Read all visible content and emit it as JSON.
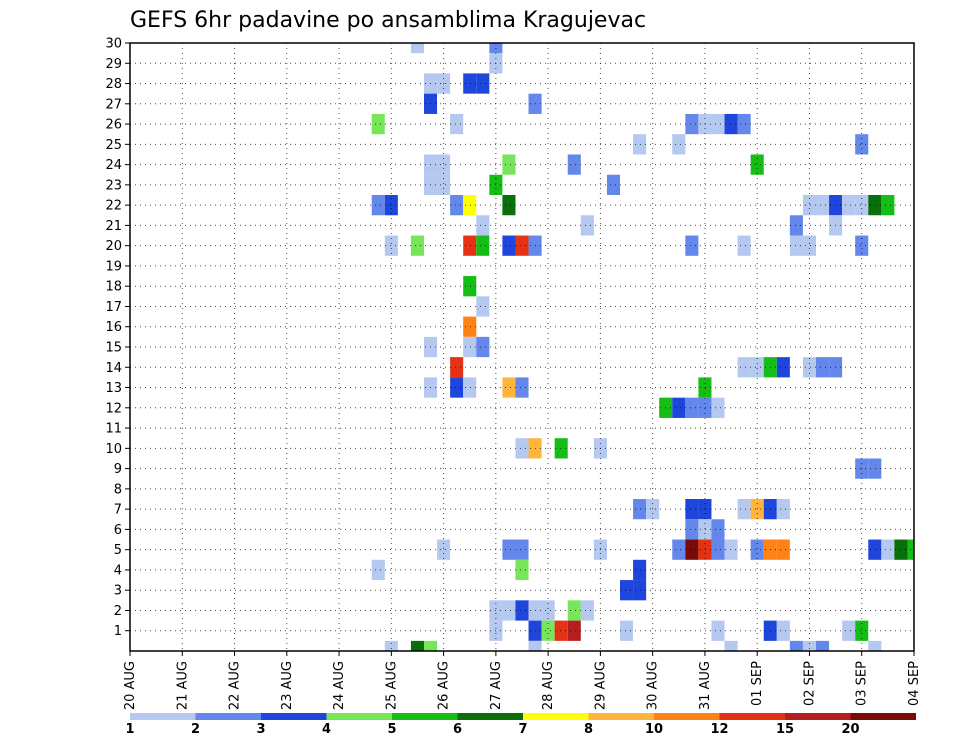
{
  "chart_data": {
    "type": "heatmap",
    "title": "GEFS 6hr padavine po ansamblima Kragujevac",
    "xlabel": "",
    "ylabel": "",
    "x_tick_labels": [
      "20 AUG",
      "21 AUG",
      "22 AUG",
      "23 AUG",
      "24 AUG",
      "25 AUG",
      "26 AUG",
      "27 AUG",
      "28 AUG",
      "29 AUG",
      "30 AUG",
      "31 AUG",
      "01 SEP",
      "02 SEP",
      "03 SEP",
      "04 SEP"
    ],
    "y_tick_labels": [
      "1",
      "2",
      "3",
      "4",
      "5",
      "6",
      "7",
      "8",
      "9",
      "10",
      "11",
      "12",
      "13",
      "14",
      "15",
      "16",
      "17",
      "18",
      "19",
      "20",
      "21",
      "22",
      "23",
      "24",
      "25",
      "26",
      "27",
      "28",
      "29",
      "30"
    ],
    "x_range_steps": [
      0,
      60
    ],
    "y_range": [
      0,
      30
    ],
    "grid": true,
    "colorbar_levels": [
      1,
      2,
      3,
      4,
      5,
      6,
      7,
      8,
      10,
      12,
      15,
      20
    ],
    "colorbar_colors": [
      "#b4c8f0",
      "#6487ec",
      "#1e46dc",
      "#78e65a",
      "#14be14",
      "#0a6e0a",
      "#ffff00",
      "#ffb43c",
      "#ff8214",
      "#e63214",
      "#b41e1e",
      "#780a0a"
    ],
    "cells_format": "[step (6h index from 20 AUG 00Z), ensemble member, color class index]",
    "cells": [
      [
        22,
        30,
        0
      ],
      [
        28,
        30,
        1
      ],
      [
        23,
        28,
        0
      ],
      [
        24,
        28,
        0
      ],
      [
        26,
        28,
        2
      ],
      [
        27,
        28,
        2
      ],
      [
        28,
        29,
        0
      ],
      [
        23,
        27,
        2
      ],
      [
        31,
        27,
        1
      ],
      [
        19,
        26,
        3
      ],
      [
        25,
        26,
        0
      ],
      [
        43,
        26,
        1
      ],
      [
        44,
        26,
        0
      ],
      [
        45,
        26,
        0
      ],
      [
        46,
        26,
        2
      ],
      [
        47,
        26,
        1
      ],
      [
        39,
        25,
        0
      ],
      [
        42,
        25,
        0
      ],
      [
        56,
        25,
        1
      ],
      [
        23,
        24,
        0
      ],
      [
        24,
        24,
        0
      ],
      [
        29,
        24,
        3
      ],
      [
        34,
        24,
        1
      ],
      [
        48,
        24,
        4
      ],
      [
        23,
        23,
        0
      ],
      [
        24,
        23,
        0
      ],
      [
        28,
        23,
        4
      ],
      [
        37,
        23,
        1
      ],
      [
        19,
        22,
        1
      ],
      [
        20,
        22,
        2
      ],
      [
        25,
        22,
        1
      ],
      [
        26,
        22,
        6
      ],
      [
        29,
        22,
        5
      ],
      [
        52,
        22,
        0
      ],
      [
        53,
        22,
        0
      ],
      [
        54,
        22,
        2
      ],
      [
        55,
        22,
        0
      ],
      [
        56,
        22,
        0
      ],
      [
        57,
        22,
        5
      ],
      [
        58,
        22,
        4
      ],
      [
        27,
        21,
        0
      ],
      [
        35,
        21,
        0
      ],
      [
        51,
        21,
        1
      ],
      [
        54,
        21,
        0
      ],
      [
        20,
        20,
        0
      ],
      [
        22,
        20,
        3
      ],
      [
        26,
        20,
        9
      ],
      [
        27,
        20,
        4
      ],
      [
        29,
        20,
        2
      ],
      [
        30,
        20,
        9
      ],
      [
        31,
        20,
        1
      ],
      [
        43,
        20,
        1
      ],
      [
        47,
        20,
        0
      ],
      [
        51,
        20,
        0
      ],
      [
        52,
        20,
        0
      ],
      [
        56,
        20,
        1
      ],
      [
        26,
        18,
        4
      ],
      [
        27,
        17,
        0
      ],
      [
        26,
        16,
        8
      ],
      [
        23,
        15,
        0
      ],
      [
        26,
        15,
        0
      ],
      [
        27,
        15,
        1
      ],
      [
        25,
        14,
        9
      ],
      [
        47,
        14,
        0
      ],
      [
        48,
        14,
        0
      ],
      [
        49,
        14,
        4
      ],
      [
        50,
        14,
        2
      ],
      [
        52,
        14,
        0
      ],
      [
        53,
        14,
        1
      ],
      [
        54,
        14,
        1
      ],
      [
        23,
        13,
        0
      ],
      [
        25,
        13,
        2
      ],
      [
        26,
        13,
        0
      ],
      [
        29,
        13,
        7
      ],
      [
        30,
        13,
        1
      ],
      [
        44,
        13,
        4
      ],
      [
        41,
        12,
        4
      ],
      [
        42,
        12,
        2
      ],
      [
        43,
        12,
        1
      ],
      [
        44,
        12,
        1
      ],
      [
        45,
        12,
        0
      ],
      [
        30,
        10,
        0
      ],
      [
        31,
        10,
        7
      ],
      [
        33,
        10,
        4
      ],
      [
        36,
        10,
        0
      ],
      [
        56,
        9,
        1
      ],
      [
        57,
        9,
        1
      ],
      [
        39,
        7,
        1
      ],
      [
        40,
        7,
        0
      ],
      [
        43,
        7,
        2
      ],
      [
        44,
        7,
        2
      ],
      [
        47,
        7,
        0
      ],
      [
        48,
        7,
        7
      ],
      [
        49,
        7,
        2
      ],
      [
        50,
        7,
        0
      ],
      [
        43,
        6,
        1
      ],
      [
        44,
        6,
        0
      ],
      [
        45,
        6,
        1
      ],
      [
        24,
        5,
        0
      ],
      [
        29,
        5,
        1
      ],
      [
        30,
        5,
        1
      ],
      [
        36,
        5,
        0
      ],
      [
        42,
        5,
        1
      ],
      [
        43,
        5,
        11
      ],
      [
        44,
        5,
        9
      ],
      [
        45,
        5,
        1
      ],
      [
        46,
        5,
        0
      ],
      [
        48,
        5,
        1
      ],
      [
        49,
        5,
        8
      ],
      [
        50,
        5,
        8
      ],
      [
        57,
        5,
        2
      ],
      [
        58,
        5,
        0
      ],
      [
        59,
        5,
        5
      ],
      [
        60,
        5,
        4
      ],
      [
        19,
        4,
        0
      ],
      [
        30,
        4,
        3
      ],
      [
        39,
        4,
        2
      ],
      [
        38,
        3,
        2
      ],
      [
        39,
        3,
        2
      ],
      [
        28,
        2,
        0
      ],
      [
        29,
        2,
        0
      ],
      [
        30,
        2,
        2
      ],
      [
        31,
        2,
        0
      ],
      [
        32,
        2,
        0
      ],
      [
        34,
        2,
        3
      ],
      [
        35,
        2,
        0
      ],
      [
        28,
        1,
        0
      ],
      [
        31,
        1,
        2
      ],
      [
        32,
        1,
        3
      ],
      [
        33,
        1,
        9
      ],
      [
        34,
        1,
        10
      ],
      [
        38,
        1,
        0
      ],
      [
        45,
        1,
        0
      ],
      [
        49,
        1,
        2
      ],
      [
        50,
        1,
        0
      ],
      [
        55,
        1,
        0
      ],
      [
        56,
        1,
        4
      ],
      [
        20,
        0,
        0
      ],
      [
        22,
        0,
        5
      ],
      [
        23,
        0,
        3
      ],
      [
        31,
        0,
        0
      ],
      [
        46,
        0,
        0
      ],
      [
        51,
        0,
        1
      ],
      [
        52,
        0,
        0
      ],
      [
        53,
        0,
        1
      ],
      [
        57,
        0,
        0
      ]
    ]
  }
}
